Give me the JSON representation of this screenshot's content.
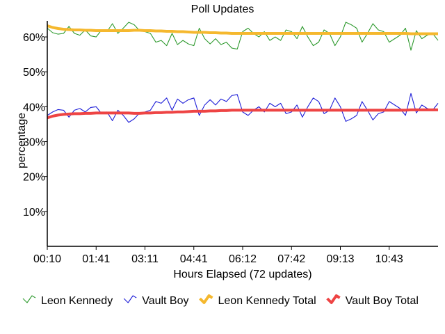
{
  "chart_data": {
    "type": "line",
    "title": "Poll Updates",
    "xlabel": "Hours Elapsed (72 updates)",
    "ylabel": "percentage",
    "x_ticks": [
      "00:10",
      "01:41",
      "03:11",
      "04:41",
      "06:12",
      "07:42",
      "09:13",
      "10:43"
    ],
    "y_ticks": [
      "10%",
      "20%",
      "30%",
      "40%",
      "50%",
      "60%"
    ],
    "y_tick_values": [
      10,
      20,
      30,
      40,
      50,
      60
    ],
    "ylim": [
      0,
      64
    ],
    "x_index_range": [
      0,
      72
    ],
    "x_tick_indices": [
      0,
      9,
      18,
      27,
      36,
      45,
      54,
      63
    ],
    "legend_position": "bottom",
    "series": [
      {
        "name": "Leon Kennedy",
        "color": "#2e9a2e",
        "style": "thin",
        "values": [
          62.5,
          61.2,
          60.8,
          61.0,
          63.0,
          61.0,
          60.5,
          62.0,
          60.3,
          60.0,
          62.0,
          61.5,
          63.8,
          61.0,
          62.5,
          64.2,
          63.5,
          61.8,
          61.5,
          61.0,
          58.5,
          59.0,
          57.5,
          61.0,
          57.8,
          59.0,
          58.0,
          57.5,
          62.5,
          59.5,
          58.0,
          59.5,
          57.8,
          58.5,
          56.8,
          56.5,
          61.5,
          62.5,
          61.0,
          60.0,
          61.5,
          59.0,
          60.0,
          59.0,
          62.0,
          61.5,
          59.5,
          63.0,
          60.0,
          57.5,
          58.5,
          62.0,
          61.0,
          57.5,
          60.0,
          64.2,
          63.5,
          62.5,
          58.5,
          61.0,
          63.8,
          62.0,
          61.5,
          58.5,
          59.5,
          60.5,
          62.5,
          56.2,
          61.8,
          59.5,
          60.5,
          61.0,
          59.0
        ]
      },
      {
        "name": "Vault Boy",
        "color": "#1f1fd8",
        "style": "thin",
        "values": [
          37.5,
          38.5,
          39.2,
          39.0,
          37.0,
          39.0,
          39.5,
          38.5,
          39.8,
          40.0,
          38.0,
          38.5,
          36.0,
          39.0,
          37.5,
          35.5,
          36.5,
          38.2,
          38.5,
          39.0,
          41.5,
          41.0,
          42.5,
          39.0,
          42.2,
          41.0,
          42.0,
          42.5,
          37.5,
          40.5,
          42.0,
          40.5,
          42.2,
          41.5,
          43.2,
          43.5,
          38.5,
          37.5,
          39.0,
          40.0,
          38.5,
          41.0,
          40.0,
          41.0,
          38.0,
          38.5,
          40.5,
          37.0,
          40.0,
          42.5,
          41.5,
          38.0,
          39.0,
          42.5,
          40.0,
          35.8,
          36.5,
          37.5,
          41.5,
          39.0,
          36.2,
          38.0,
          38.5,
          41.5,
          40.5,
          39.5,
          37.5,
          43.8,
          38.2,
          40.5,
          39.5,
          39.0,
          41.0
        ]
      },
      {
        "name": "Leon Kennedy Total",
        "color": "#f5b82e",
        "style": "thick",
        "values": [
          63.2,
          62.7,
          62.4,
          62.2,
          62.1,
          62.0,
          62.0,
          61.9,
          61.9,
          61.8,
          61.8,
          61.8,
          61.8,
          61.8,
          61.8,
          61.8,
          61.9,
          61.9,
          61.8,
          61.8,
          61.7,
          61.7,
          61.6,
          61.6,
          61.5,
          61.5,
          61.4,
          61.3,
          61.3,
          61.3,
          61.2,
          61.2,
          61.1,
          61.1,
          61.0,
          61.0,
          61.0,
          61.0,
          61.0,
          61.0,
          61.0,
          61.0,
          61.0,
          61.0,
          61.0,
          61.0,
          61.0,
          61.0,
          61.0,
          61.0,
          61.0,
          61.0,
          61.0,
          61.0,
          61.0,
          61.0,
          61.0,
          61.0,
          61.0,
          61.0,
          61.0,
          61.0,
          61.0,
          61.0,
          61.0,
          61.0,
          61.0,
          60.9,
          60.9,
          60.9,
          60.9,
          60.9,
          60.9
        ]
      },
      {
        "name": "Vault Boy Total",
        "color": "#ee4444",
        "style": "thick",
        "values": [
          36.8,
          37.3,
          37.6,
          37.8,
          37.9,
          38.0,
          38.0,
          38.1,
          38.1,
          38.2,
          38.2,
          38.2,
          38.2,
          38.2,
          38.2,
          38.2,
          38.1,
          38.1,
          38.2,
          38.2,
          38.3,
          38.3,
          38.4,
          38.4,
          38.5,
          38.5,
          38.6,
          38.7,
          38.7,
          38.7,
          38.8,
          38.8,
          38.9,
          38.9,
          39.0,
          39.0,
          39.0,
          39.0,
          39.0,
          39.0,
          39.0,
          39.0,
          39.0,
          39.0,
          39.0,
          39.0,
          39.0,
          39.0,
          39.0,
          39.0,
          39.0,
          39.0,
          39.0,
          39.0,
          39.0,
          39.0,
          39.0,
          39.0,
          39.0,
          39.0,
          39.0,
          39.0,
          39.0,
          39.0,
          39.0,
          39.0,
          39.0,
          39.1,
          39.1,
          39.1,
          39.1,
          39.1,
          39.1
        ]
      }
    ]
  }
}
